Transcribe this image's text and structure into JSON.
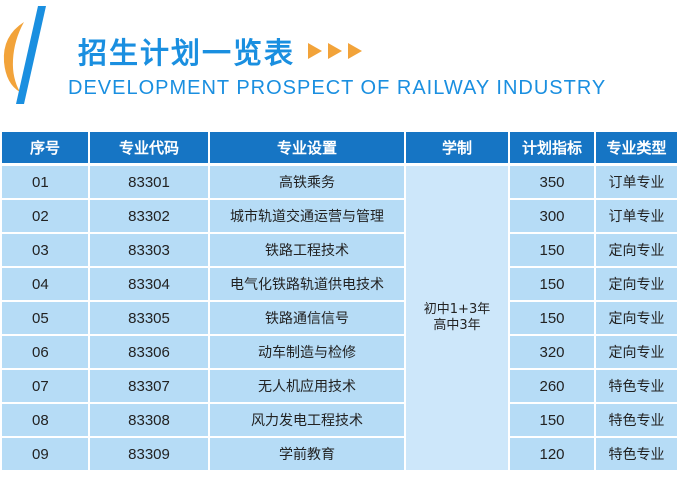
{
  "header": {
    "title_cn": "招生计划一览表",
    "title_en": "DEVELOPMENT PROSPECT OF RAILWAY INDUSTRY",
    "accent_color": "#1a8fe0",
    "logo_stripe_color": "#f2a33a",
    "arrow_color": "#f2a33a"
  },
  "table": {
    "header_bg": "#1675c4",
    "cell_bg": "#b6dcf6",
    "columns": [
      "序号",
      "专业代码",
      "专业设置",
      "学制",
      "计划指标",
      "专业类型"
    ],
    "duration_line1": "初中1+3年",
    "duration_line2": "高中3年",
    "rows": [
      {
        "no": "01",
        "code": "83301",
        "major": "高铁乘务",
        "quota": "350",
        "type": "订单专业"
      },
      {
        "no": "02",
        "code": "83302",
        "major": "城市轨道交通运营与管理",
        "quota": "300",
        "type": "订单专业"
      },
      {
        "no": "03",
        "code": "83303",
        "major": "铁路工程技术",
        "quota": "150",
        "type": "定向专业"
      },
      {
        "no": "04",
        "code": "83304",
        "major": "电气化铁路轨道供电技术",
        "quota": "150",
        "type": "定向专业"
      },
      {
        "no": "05",
        "code": "83305",
        "major": "铁路通信信号",
        "quota": "150",
        "type": "定向专业"
      },
      {
        "no": "06",
        "code": "83306",
        "major": "动车制造与检修",
        "quota": "320",
        "type": "定向专业"
      },
      {
        "no": "07",
        "code": "83307",
        "major": "无人机应用技术",
        "quota": "260",
        "type": "特色专业"
      },
      {
        "no": "08",
        "code": "83308",
        "major": "风力发电工程技术",
        "quota": "150",
        "type": "特色专业"
      },
      {
        "no": "09",
        "code": "83309",
        "major": "学前教育",
        "quota": "120",
        "type": "特色专业"
      }
    ]
  }
}
